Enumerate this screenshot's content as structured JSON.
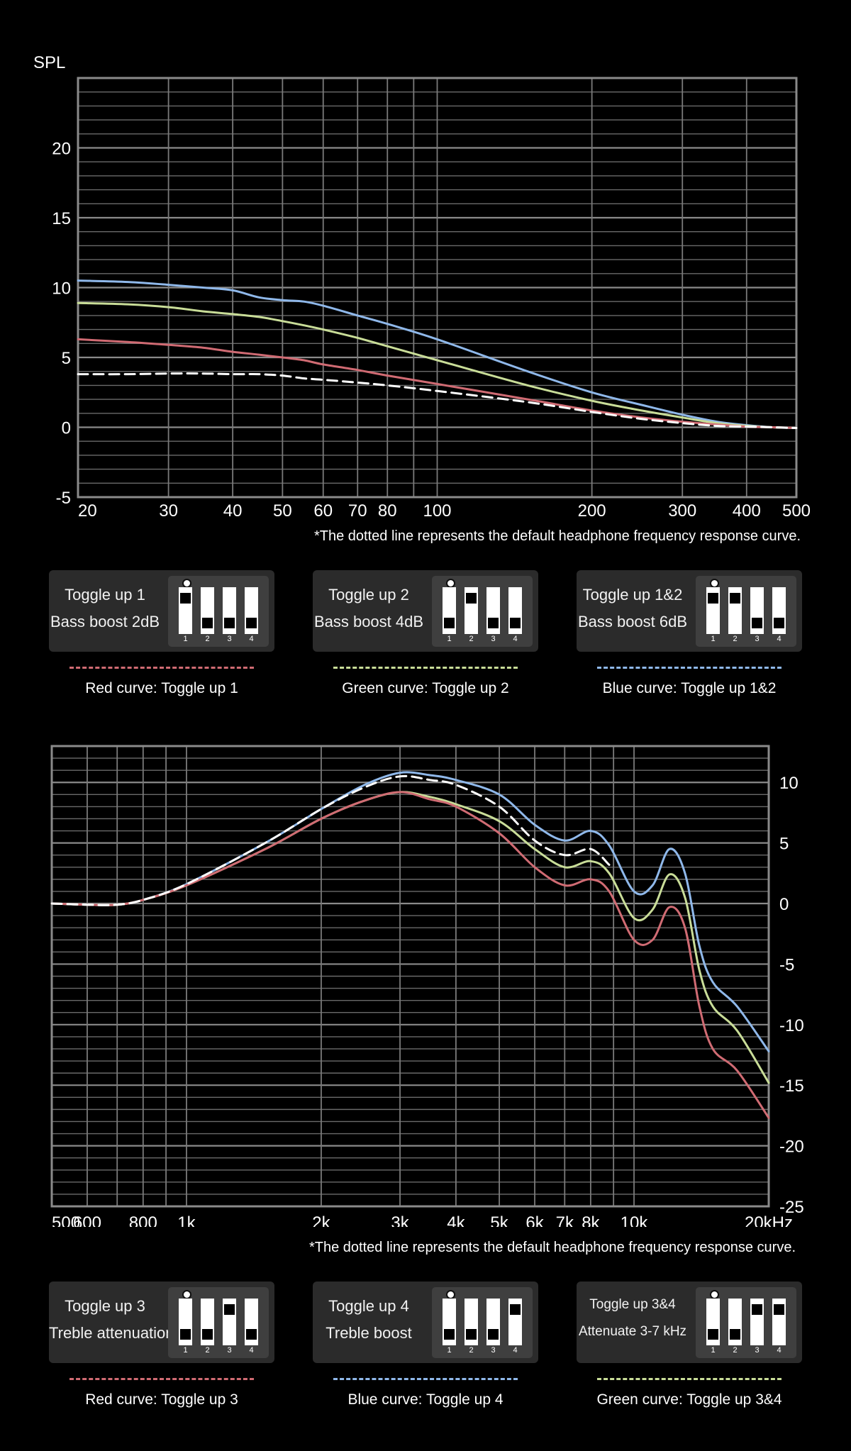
{
  "chart_data": [
    {
      "type": "line",
      "x_scale": "log",
      "xlim": [
        20,
        500
      ],
      "ylim": [
        -5,
        25
      ],
      "ylabel": "SPL",
      "x_ticks": [
        20,
        30,
        40,
        50,
        60,
        70,
        80,
        100,
        200,
        300,
        400,
        500
      ],
      "x_tick_labels": [
        "20",
        "30",
        "40",
        "50",
        "60",
        "70",
        "80",
        "100",
        "200",
        "300",
        "400",
        "500"
      ],
      "y_ticks": [
        -5,
        0,
        5,
        10,
        15,
        20
      ],
      "y_tick_labels": [
        "-5",
        "0",
        "5",
        "10",
        "15",
        "20"
      ],
      "grid": true,
      "note": "*The dotted line represents the default headphone frequency response curve.",
      "series": [
        {
          "color": "#8fb8ea",
          "style": "solid",
          "x": [
            20,
            25,
            30,
            35,
            40,
            45,
            50,
            55,
            60,
            70,
            80,
            100,
            150,
            200,
            250,
            300,
            350,
            400,
            450,
            500
          ],
          "y": [
            10.5,
            10.4,
            10.2,
            10.0,
            9.8,
            9.3,
            9.1,
            9.0,
            8.7,
            8.0,
            7.4,
            6.3,
            4.0,
            2.5,
            1.6,
            0.9,
            0.4,
            0.15,
            0.0,
            -0.05
          ]
        },
        {
          "color": "#c9dd98",
          "style": "solid",
          "x": [
            20,
            25,
            30,
            35,
            40,
            45,
            50,
            55,
            60,
            70,
            80,
            100,
            150,
            200,
            250,
            300,
            350,
            400,
            450,
            500
          ],
          "y": [
            8.9,
            8.8,
            8.6,
            8.3,
            8.1,
            7.9,
            7.6,
            7.3,
            7.0,
            6.4,
            5.8,
            4.8,
            3.0,
            1.9,
            1.2,
            0.7,
            0.3,
            0.1,
            0.0,
            -0.05
          ]
        },
        {
          "color": "#d06b73",
          "style": "solid",
          "x": [
            20,
            25,
            30,
            35,
            40,
            45,
            50,
            55,
            60,
            70,
            80,
            100,
            150,
            200,
            250,
            300,
            350,
            400,
            450,
            500
          ],
          "y": [
            6.3,
            6.1,
            5.9,
            5.7,
            5.4,
            5.2,
            5.0,
            4.8,
            4.5,
            4.1,
            3.7,
            3.1,
            2.0,
            1.2,
            0.7,
            0.4,
            0.2,
            0.05,
            0.0,
            -0.05
          ]
        },
        {
          "color": "#ffffff",
          "style": "dashed",
          "x": [
            20,
            25,
            30,
            35,
            40,
            45,
            50,
            55,
            60,
            70,
            80,
            100,
            150,
            200,
            250,
            300,
            350,
            400,
            450,
            500
          ],
          "y": [
            3.8,
            3.8,
            3.85,
            3.85,
            3.8,
            3.8,
            3.7,
            3.5,
            3.4,
            3.2,
            3.0,
            2.6,
            1.8,
            1.1,
            0.6,
            0.3,
            0.1,
            0.05,
            0.0,
            -0.05
          ]
        }
      ]
    },
    {
      "type": "line",
      "x_scale": "log",
      "xlim": [
        500,
        20000
      ],
      "ylim": [
        -25,
        13
      ],
      "x_ticks": [
        500,
        600,
        800,
        1000,
        2000,
        3000,
        4000,
        5000,
        6000,
        7000,
        8000,
        10000,
        20000
      ],
      "x_tick_labels": [
        "500",
        "600",
        "800",
        "1k",
        "2k",
        "3k",
        "4k",
        "5k",
        "6k",
        "7k",
        "8k",
        "10k",
        "20kHz"
      ],
      "y_ticks": [
        10,
        5,
        0,
        -5,
        -10,
        -15,
        -20,
        -25
      ],
      "y_tick_labels": [
        "10",
        "5",
        "0",
        "-5",
        "-10",
        "-15",
        "-20",
        "-25"
      ],
      "grid": true,
      "note": "*The dotted line represents the default headphone frequency response curve.",
      "series": [
        {
          "color": "#8fb8ea",
          "style": "solid",
          "x": [
            500,
            600,
            700,
            800,
            1000,
            1500,
            2000,
            2500,
            3000,
            3500,
            4000,
            5000,
            6000,
            7000,
            8000,
            8800,
            10000,
            11000,
            12000,
            13000,
            14000,
            15000,
            17000,
            20000
          ],
          "y": [
            0,
            -0.1,
            -0.1,
            0.3,
            1.6,
            5.0,
            7.8,
            9.8,
            10.8,
            10.6,
            10.2,
            9.0,
            6.5,
            5.2,
            6.0,
            4.8,
            1.0,
            1.5,
            4.5,
            2.5,
            -3.5,
            -6.5,
            -8.5,
            -12.2
          ]
        },
        {
          "color": "#c9dd98",
          "style": "solid",
          "x": [
            500,
            600,
            700,
            800,
            1000,
            1500,
            2000,
            2500,
            3000,
            3500,
            4000,
            5000,
            6000,
            7000,
            8000,
            8800,
            10000,
            11000,
            12000,
            13000,
            14000,
            15000,
            17000,
            20000
          ],
          "y": [
            0,
            -0.1,
            -0.1,
            0.3,
            1.5,
            4.5,
            7.0,
            8.5,
            9.2,
            8.8,
            8.2,
            6.8,
            4.5,
            3.0,
            3.5,
            2.5,
            -1.2,
            -0.5,
            2.4,
            0.5,
            -5.5,
            -8.5,
            -10.5,
            -14.8
          ]
        },
        {
          "color": "#d06b73",
          "style": "solid",
          "x": [
            500,
            600,
            700,
            800,
            1000,
            1500,
            2000,
            2500,
            3000,
            3500,
            4000,
            5000,
            6000,
            7000,
            8000,
            8800,
            10000,
            11000,
            12000,
            13000,
            14000,
            15000,
            17000,
            20000
          ],
          "y": [
            0,
            -0.1,
            -0.1,
            0.3,
            1.5,
            4.5,
            7.0,
            8.5,
            9.2,
            8.6,
            8.0,
            5.8,
            3.0,
            1.5,
            2.0,
            1.0,
            -3.0,
            -3.0,
            -0.3,
            -2.0,
            -8.5,
            -12.0,
            -13.8,
            -17.7
          ]
        },
        {
          "color": "#ffffff",
          "style": "dashed",
          "x": [
            500,
            600,
            700,
            800,
            1000,
            1500,
            2000,
            2500,
            3000,
            3500,
            4000,
            5000,
            6000,
            7000,
            8000,
            8800
          ],
          "y": [
            0,
            -0.1,
            -0.1,
            0.3,
            1.6,
            5.0,
            7.8,
            9.6,
            10.5,
            10.2,
            9.8,
            8.0,
            5.2,
            4.0,
            4.5,
            3.2
          ]
        }
      ]
    }
  ],
  "panels": [
    {
      "cards": [
        {
          "line1": "Toggle up 1",
          "line2": "Bass boost 2dB",
          "switches": [
            true,
            false,
            false,
            false
          ],
          "nums": [
            "1",
            "2",
            "3",
            "4"
          ],
          "small": false,
          "legend_color": "#d06b73",
          "legend_text": "Red curve: Toggle up 1"
        },
        {
          "line1": "Toggle up 2",
          "line2": "Bass boost 4dB",
          "switches": [
            false,
            true,
            false,
            false
          ],
          "nums": [
            "1",
            "2",
            "3",
            "4"
          ],
          "small": false,
          "legend_color": "#c9dd98",
          "legend_text": "Green curve: Toggle up 2"
        },
        {
          "line1": "Toggle up 1&2",
          "line2": "Bass boost 6dB",
          "switches": [
            true,
            true,
            false,
            false
          ],
          "nums": [
            "1",
            "2",
            "3",
            "4"
          ],
          "small": false,
          "legend_color": "#8fb8ea",
          "legend_text": "Blue curve: Toggle up 1&2"
        }
      ]
    },
    {
      "cards": [
        {
          "line1": "Toggle up 3",
          "line2": "Treble attenuation",
          "switches": [
            false,
            false,
            true,
            false
          ],
          "nums": [
            "1",
            "2",
            "3",
            "4"
          ],
          "small": false,
          "legend_color": "#d06b73",
          "legend_text": "Red curve: Toggle up 3"
        },
        {
          "line1": "Toggle up 4",
          "line2": "Treble boost",
          "switches": [
            false,
            false,
            false,
            true
          ],
          "nums": [
            "1",
            "2",
            "3",
            "4"
          ],
          "small": false,
          "legend_color": "#8fb8ea",
          "legend_text": "Blue curve: Toggle up 4"
        },
        {
          "line1": "Toggle up 3&4",
          "line2": "Attenuate 3-7 kHz",
          "switches": [
            false,
            false,
            true,
            true
          ],
          "nums": [
            "1",
            "2",
            "3",
            "4"
          ],
          "small": true,
          "legend_color": "#c9dd98",
          "legend_text": "Green curve: Toggle up 3&4"
        }
      ]
    }
  ]
}
